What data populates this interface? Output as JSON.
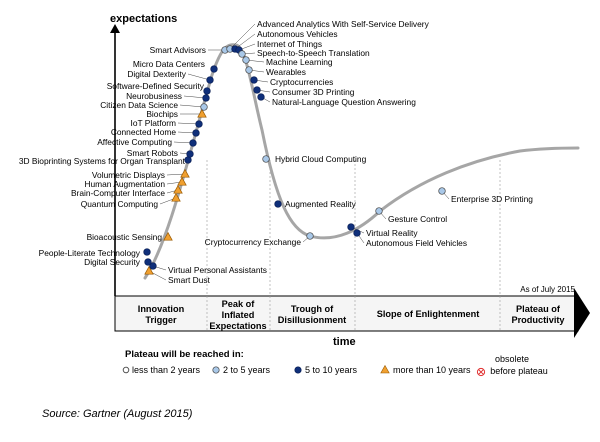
{
  "chart_data": {
    "type": "hype-cycle",
    "y_axis_label": "expectations",
    "x_axis_label": "time",
    "as_of": "As of July 2015",
    "colors": {
      "less_than_2": "#ffffff",
      "2_to_5": "#a9c8e8",
      "5_to_10": "#0f2f7a",
      "more_than_10": "#f0a030",
      "obsolete": "#e03030",
      "curve": "#a6a6a6"
    },
    "phases": [
      {
        "id": "innovation",
        "lines": [
          "Innovation",
          "Trigger"
        ]
      },
      {
        "id": "peak",
        "lines": [
          "Peak of",
          "Inflated",
          "Expectations"
        ]
      },
      {
        "id": "trough",
        "lines": [
          "Trough of",
          "Disillusionment"
        ]
      },
      {
        "id": "slope",
        "lines": [
          "Slope of Enlightenment"
        ]
      },
      {
        "id": "plateau",
        "lines": [
          "Plateau of",
          "Productivity"
        ]
      }
    ],
    "legend": {
      "title": "Plateau will be reached in:",
      "items": [
        {
          "key": "lt2",
          "label": "less than 2 years"
        },
        {
          "key": "2to5",
          "label": "2 to 5 years"
        },
        {
          "key": "5to10",
          "label": "5 to 10 years"
        },
        {
          "key": "gt10",
          "label": "more than 10 years"
        },
        {
          "key": "obsolete",
          "label_lines": [
            "obsolete",
            "before plateau"
          ]
        }
      ]
    },
    "technologies": [
      {
        "name": "Smart Dust",
        "phase": "innovation",
        "plateau": "gt10"
      },
      {
        "name": "Virtual Personal Assistants",
        "phase": "innovation",
        "plateau": "5to10"
      },
      {
        "name": "Digital Security",
        "phase": "innovation",
        "plateau": "5to10"
      },
      {
        "name": "People-Literate Technology",
        "phase": "innovation",
        "plateau": "5to10"
      },
      {
        "name": "Bioacoustic Sensing",
        "phase": "innovation",
        "plateau": "gt10"
      },
      {
        "name": "Quantum Computing",
        "phase": "innovation",
        "plateau": "gt10"
      },
      {
        "name": "Brain-Computer Interface",
        "phase": "innovation",
        "plateau": "gt10"
      },
      {
        "name": "Human Augmentation",
        "phase": "innovation",
        "plateau": "gt10"
      },
      {
        "name": "Volumetric Displays",
        "phase": "innovation",
        "plateau": "gt10"
      },
      {
        "name": "3D Bioprinting Systems for Organ Transplant",
        "phase": "innovation",
        "plateau": "5to10"
      },
      {
        "name": "Smart Robots",
        "phase": "innovation",
        "plateau": "5to10"
      },
      {
        "name": "Affective  Computing",
        "phase": "innovation",
        "plateau": "5to10"
      },
      {
        "name": "Connected Home",
        "phase": "innovation",
        "plateau": "5to10"
      },
      {
        "name": "IoT Platform",
        "phase": "innovation",
        "plateau": "5to10"
      },
      {
        "name": "Biochips",
        "phase": "innovation",
        "plateau": "gt10"
      },
      {
        "name": "Citizen Data Science",
        "phase": "innovation",
        "plateau": "2to5"
      },
      {
        "name": "Neurobusiness",
        "phase": "innovation",
        "plateau": "5to10"
      },
      {
        "name": "Software-Defined Security",
        "phase": "innovation",
        "plateau": "5to10"
      },
      {
        "name": "Digital Dexterity",
        "phase": "innovation",
        "plateau": "5to10"
      },
      {
        "name": "Micro Data Centers",
        "phase": "innovation",
        "plateau": "5to10"
      },
      {
        "name": "Smart Advisors",
        "phase": "peak",
        "plateau": "2to5"
      },
      {
        "name": "Advanced Analytics With Self-Service Delivery",
        "phase": "peak",
        "plateau": "2to5"
      },
      {
        "name": "Autonomous Vehicles",
        "phase": "peak",
        "plateau": "5to10"
      },
      {
        "name": "Internet of Things",
        "phase": "peak",
        "plateau": "5to10"
      },
      {
        "name": "Speech-to-Speech Translation",
        "phase": "peak",
        "plateau": "2to5"
      },
      {
        "name": "Machine Learning",
        "phase": "peak",
        "plateau": "2to5"
      },
      {
        "name": "Wearables",
        "phase": "peak",
        "plateau": "2to5"
      },
      {
        "name": "Cryptocurrencies",
        "phase": "peak",
        "plateau": "5to10"
      },
      {
        "name": "Consumer 3D Printing",
        "phase": "peak",
        "plateau": "5to10"
      },
      {
        "name": "Natural-Language Question Answering",
        "phase": "peak",
        "plateau": "5to10"
      },
      {
        "name": "Hybrid Cloud Computing",
        "phase": "trough",
        "plateau": "2to5"
      },
      {
        "name": "Augmented Reality",
        "phase": "trough",
        "plateau": "5to10"
      },
      {
        "name": "Cryptocurrency Exchange",
        "phase": "trough",
        "plateau": "2to5"
      },
      {
        "name": "Virtual Reality",
        "phase": "trough",
        "plateau": "5to10"
      },
      {
        "name": "Autonomous Field Vehicles",
        "phase": "trough",
        "plateau": "5to10"
      },
      {
        "name": "Gesture Control",
        "phase": "slope",
        "plateau": "2to5"
      },
      {
        "name": "Enterprise 3D Printing",
        "phase": "slope",
        "plateau": "2to5"
      }
    ]
  },
  "source": "Source: Gartner (August 2015)"
}
